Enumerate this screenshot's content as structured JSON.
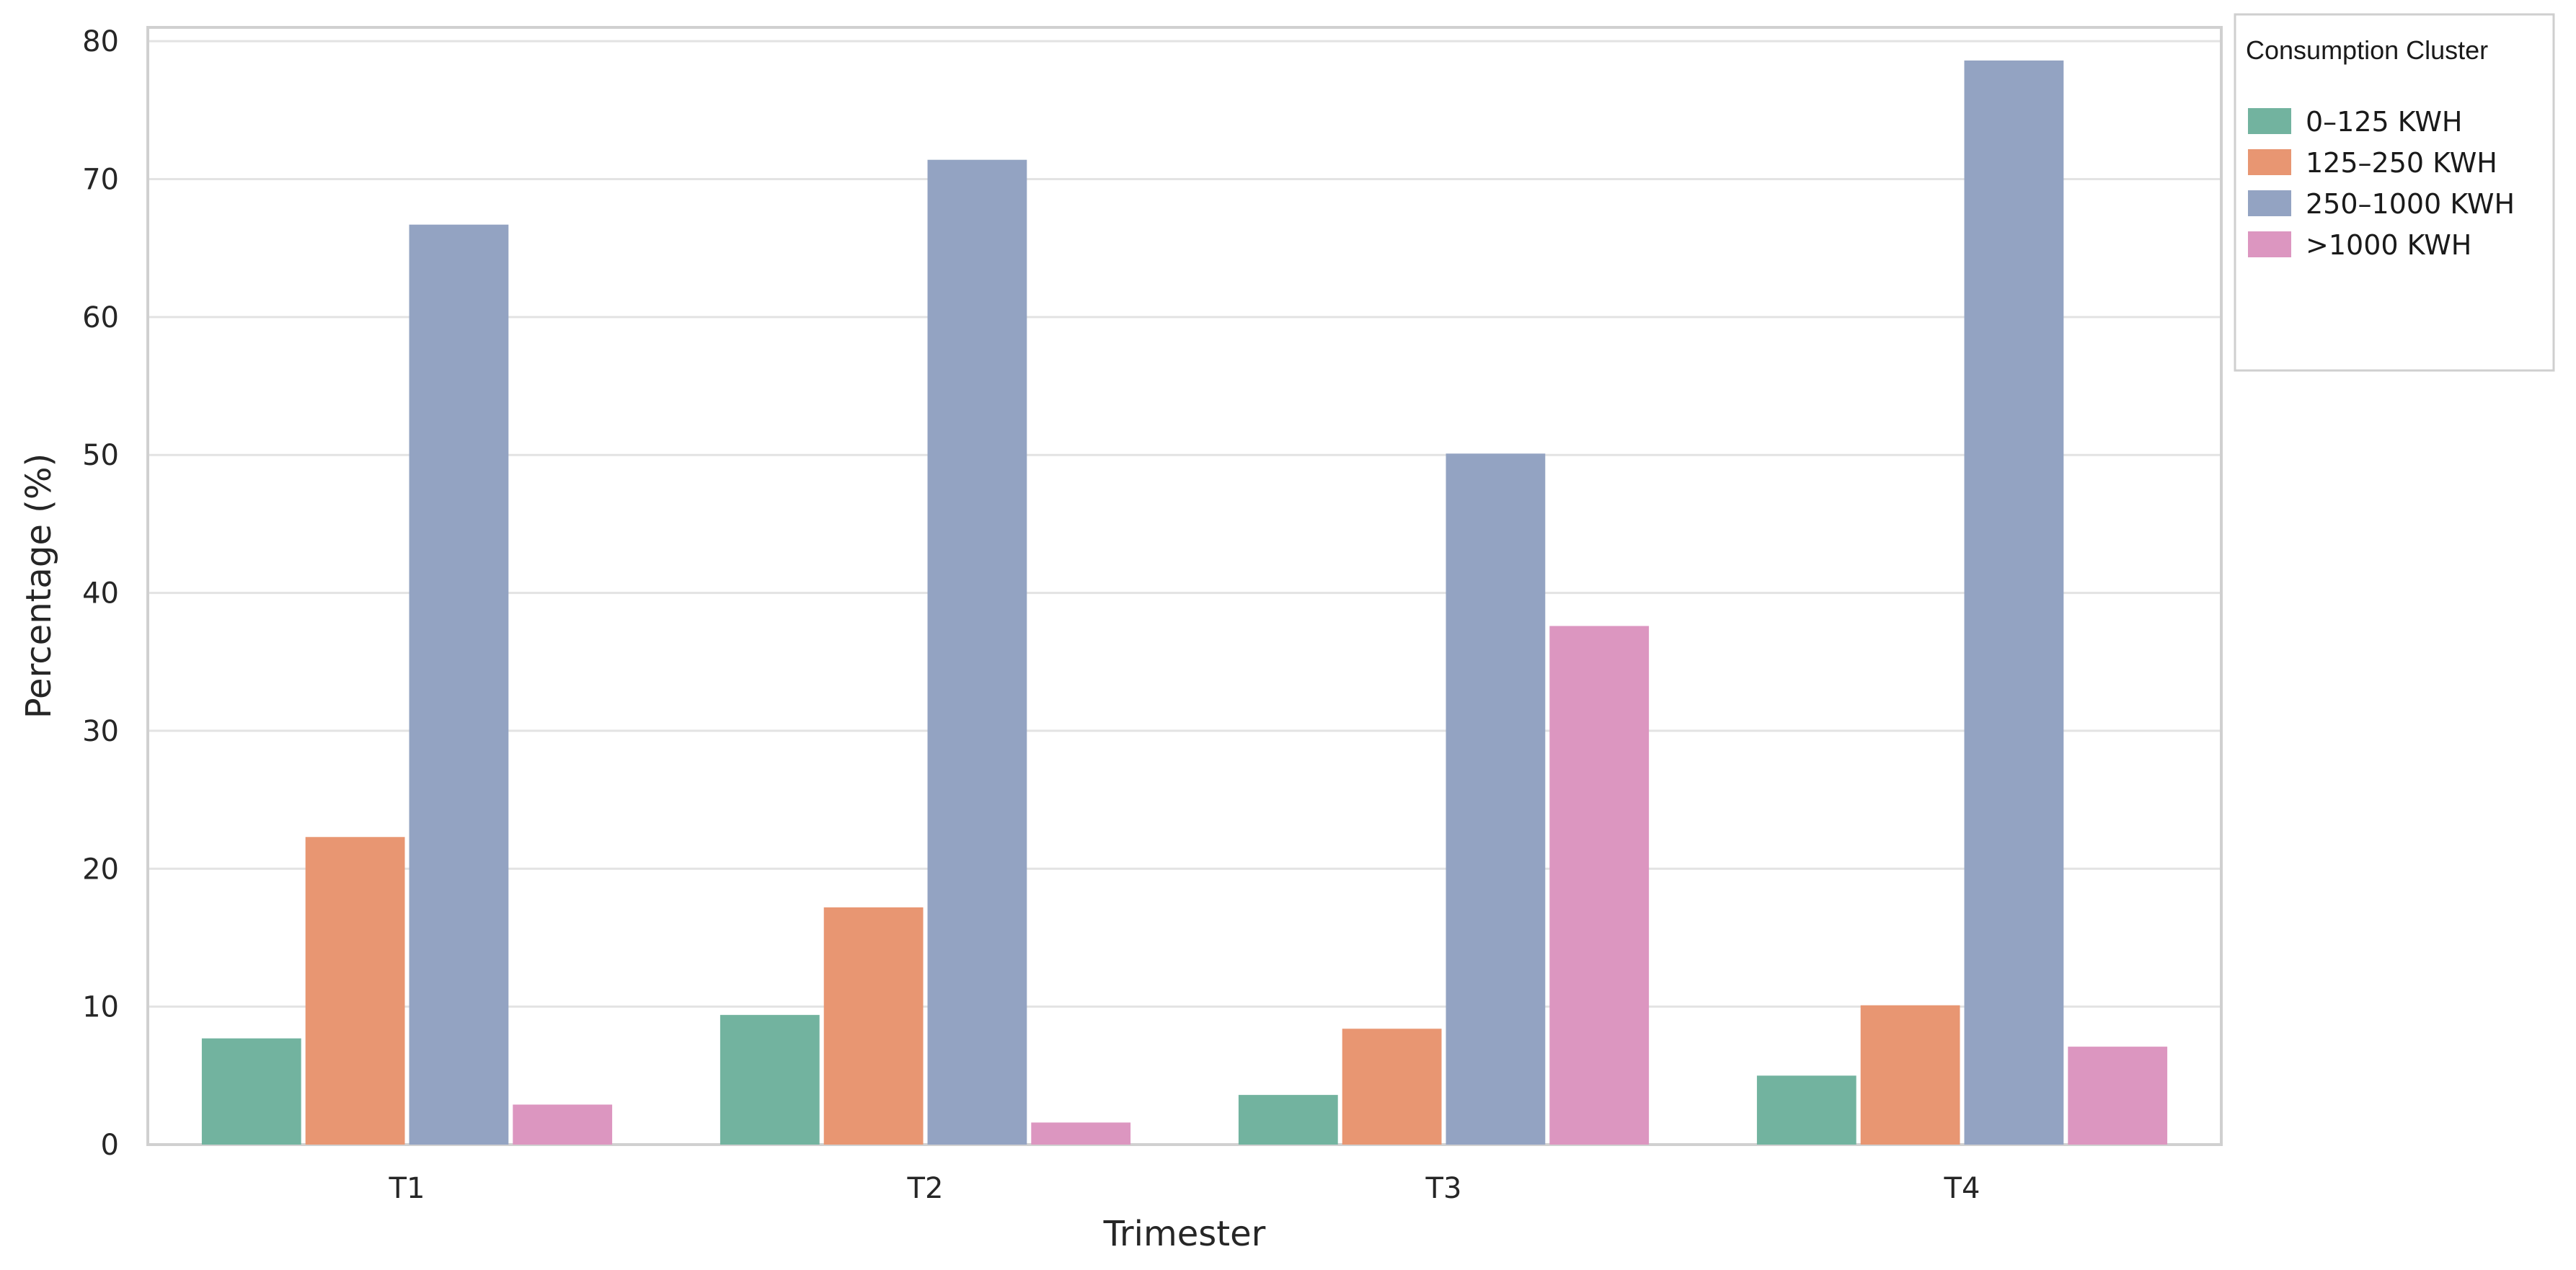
{
  "chart_data": {
    "type": "bar",
    "xlabel": "Trimester",
    "ylabel": "Percentage (%)",
    "ylim": [
      0,
      81
    ],
    "yticks": [
      0,
      10,
      20,
      30,
      40,
      50,
      60,
      70,
      80
    ],
    "categories": [
      "T1",
      "T2",
      "T3",
      "T4"
    ],
    "grid": true,
    "legend": {
      "title": "Consumption Cluster",
      "placement": "outside-top-right"
    },
    "series": [
      {
        "name": "0–125 KWH",
        "color": "#72b39f",
        "values": [
          7.7,
          9.4,
          3.6,
          5.0
        ]
      },
      {
        "name": "125–250 KWH",
        "color": "#e89672",
        "values": [
          22.3,
          17.2,
          8.4,
          10.1
        ]
      },
      {
        "name": "250–1000 KWH",
        "color": "#93a3c2",
        "values": [
          66.7,
          71.4,
          50.1,
          78.6
        ]
      },
      {
        "name": ">1000 KWH",
        "color": "#dc96c0",
        "values": [
          2.9,
          1.6,
          37.6,
          7.1
        ]
      }
    ]
  }
}
